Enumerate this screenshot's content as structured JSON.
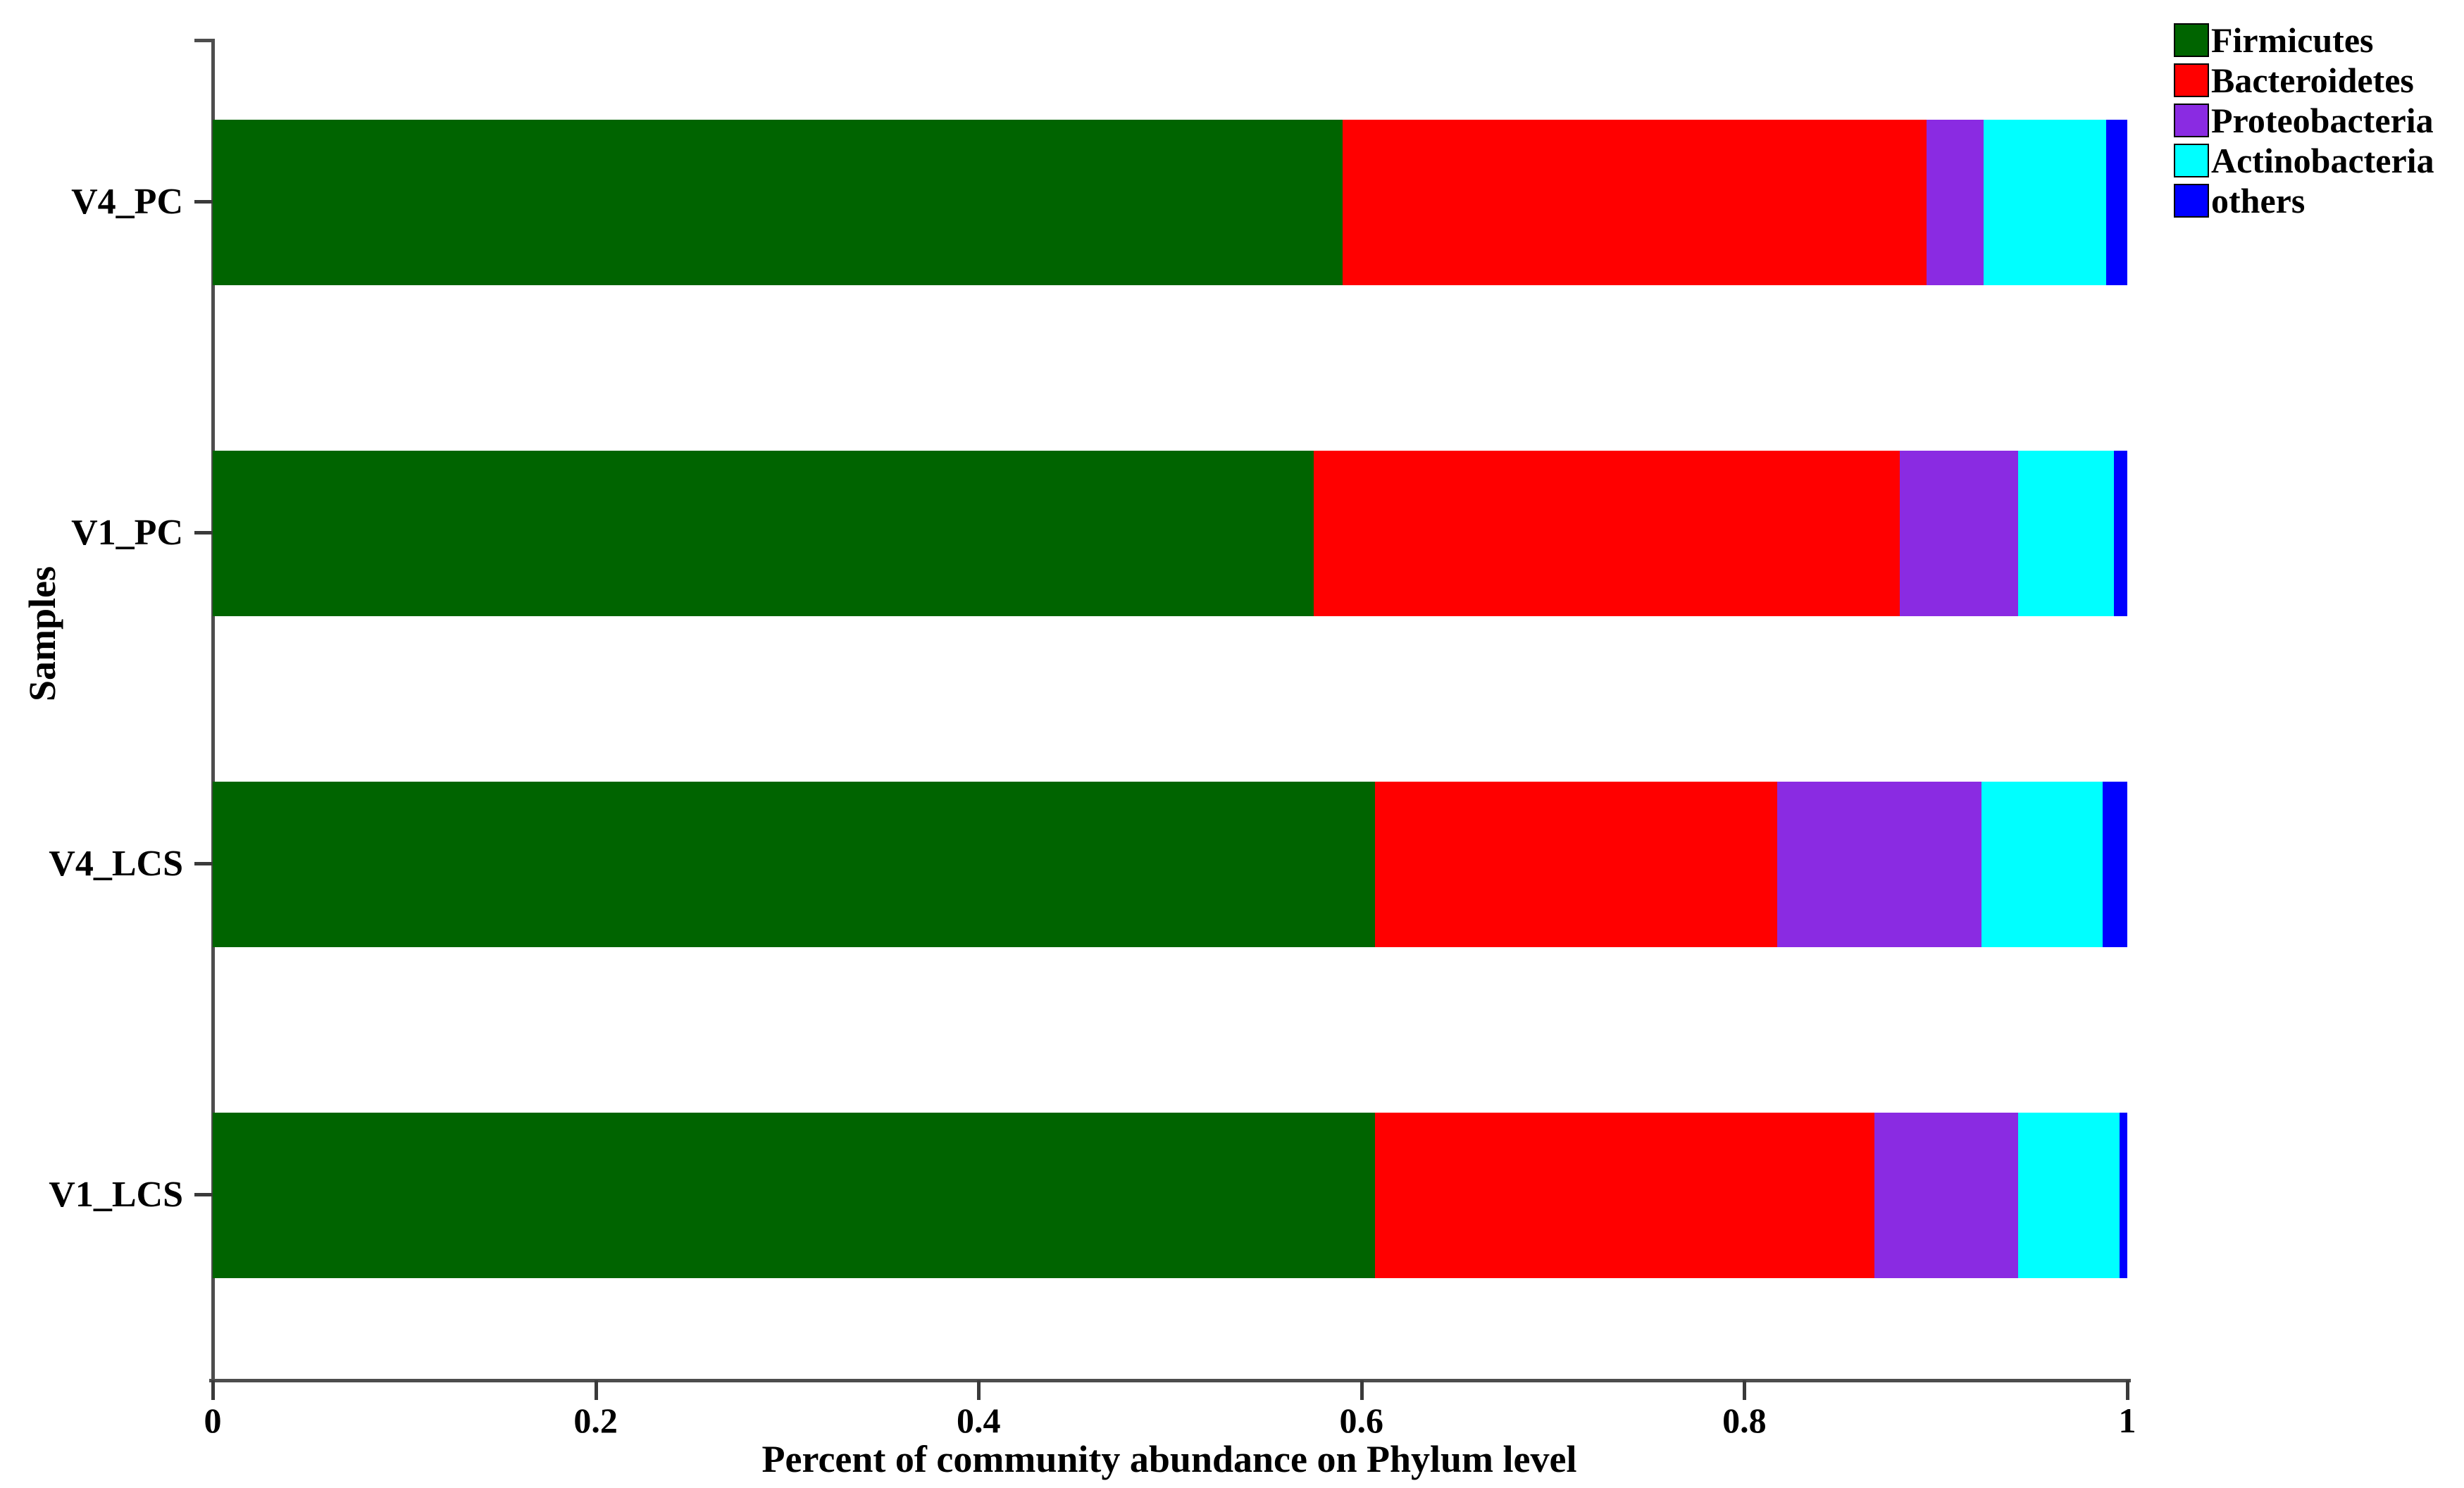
{
  "chart_data": {
    "type": "bar",
    "orientation": "horizontal",
    "stacked": true,
    "xlabel": "Percent of community abundance on Phylum level",
    "ylabel": "Samples",
    "xlim": [
      0,
      1
    ],
    "xticks": [
      0,
      0.2,
      0.4,
      0.6,
      0.8,
      1
    ],
    "xtick_labels": [
      "0",
      "0.2",
      "0.4",
      "0.6",
      "0.8",
      "1"
    ],
    "categories": [
      "V4_PC",
      "V1_PC",
      "V4_LCS",
      "V1_LCS"
    ],
    "series": [
      {
        "name": "Firmicutes",
        "color": "#006400",
        "values": [
          0.59,
          0.575,
          0.607,
          0.607
        ]
      },
      {
        "name": "Bacteroidetes",
        "color": "#ff0000",
        "values": [
          0.305,
          0.306,
          0.21,
          0.261
        ]
      },
      {
        "name": "Proteobacteria",
        "color": "#8a2be2",
        "values": [
          0.03,
          0.062,
          0.107,
          0.075
        ]
      },
      {
        "name": "Actinobacteria",
        "color": "#00ffff",
        "values": [
          0.064,
          0.05,
          0.063,
          0.053
        ]
      },
      {
        "name": "others",
        "color": "#0000ff",
        "values": [
          0.011,
          0.007,
          0.013,
          0.004
        ]
      }
    ],
    "legend_position": "top-right",
    "grid": false,
    "axis_color": "#4d4d4d"
  }
}
